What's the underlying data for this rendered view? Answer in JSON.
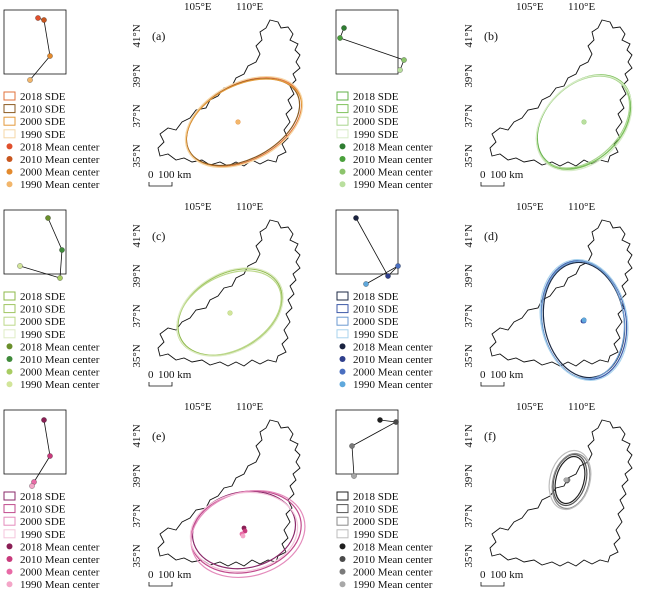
{
  "panels": [
    {
      "label": "(a)",
      "lon_ticks": [
        "105°E",
        "110°E"
      ],
      "lat_ticks": [
        "41°N",
        "39°N",
        "37°N",
        "35°N"
      ],
      "scale_label": "100 km",
      "scale_zero": "0",
      "legend": [
        {
          "text": "2018 SDE",
          "kind": "sde",
          "color": "#e2703a"
        },
        {
          "text": "2010 SDE",
          "kind": "sde",
          "color": "#8a5a20"
        },
        {
          "text": "2000 SDE",
          "kind": "sde",
          "color": "#e39a3b"
        },
        {
          "text": "1990 SDE",
          "kind": "sde",
          "color": "#f6d7a7"
        },
        {
          "text": "2018 Mean center",
          "kind": "center",
          "color": "#e0502d"
        },
        {
          "text": "2010 Mean center",
          "kind": "center",
          "color": "#c8561e"
        },
        {
          "text": "2000 Mean center",
          "kind": "center",
          "color": "#e38a2e"
        },
        {
          "text": "1990 Mean center",
          "kind": "center",
          "color": "#f2b66b"
        }
      ]
    },
    {
      "label": "(b)",
      "lon_ticks": [
        "105°E",
        "110°E"
      ],
      "lat_ticks": [
        "41°N",
        "39°N",
        "37°N",
        "35°N"
      ],
      "scale_label": "100 km",
      "scale_zero": "0",
      "legend": [
        {
          "text": "2018 SDE",
          "kind": "sde",
          "color": "#62b04a"
        },
        {
          "text": "2010 SDE",
          "kind": "sde",
          "color": "#7fc25c"
        },
        {
          "text": "2000 SDE",
          "kind": "sde",
          "color": "#a9d68e"
        },
        {
          "text": "1990 SDE",
          "kind": "sde",
          "color": "#d8ecc9"
        },
        {
          "text": "2018 Mean center",
          "kind": "center",
          "color": "#2f7d32"
        },
        {
          "text": "2010 Mean center",
          "kind": "center",
          "color": "#4aa03c"
        },
        {
          "text": "2000 Mean center",
          "kind": "center",
          "color": "#8cc46c"
        },
        {
          "text": "1990 Mean center",
          "kind": "center",
          "color": "#b9df9e"
        }
      ]
    },
    {
      "label": "(c)",
      "lon_ticks": [
        "105°E",
        "110°E"
      ],
      "lat_ticks": [
        "41°N",
        "39°N",
        "37°N",
        "35°N"
      ],
      "scale_label": "100 km",
      "scale_zero": "0",
      "legend": [
        {
          "text": "2018 SDE",
          "kind": "sde",
          "color": "#8db84a"
        },
        {
          "text": "2010 SDE",
          "kind": "sde",
          "color": "#9fc560"
        },
        {
          "text": "2000 SDE",
          "kind": "sde",
          "color": "#bcd88a"
        },
        {
          "text": "1990 SDE",
          "kind": "sde",
          "color": "#dfecc6"
        },
        {
          "text": "2018 Mean center",
          "kind": "center",
          "color": "#6a8f2c"
        },
        {
          "text": "2010 Mean center",
          "kind": "center",
          "color": "#3f8a3a"
        },
        {
          "text": "2000 Mean center",
          "kind": "center",
          "color": "#a8cc62"
        },
        {
          "text": "1990 Mean center",
          "kind": "center",
          "color": "#d2e59a"
        }
      ]
    },
    {
      "label": "(d)",
      "lon_ticks": [
        "105°E",
        "110°E"
      ],
      "lat_ticks": [
        "41°N",
        "39°N",
        "37°N",
        "35°N"
      ],
      "scale_label": "100 km",
      "scale_zero": "0",
      "legend": [
        {
          "text": "2018 SDE",
          "kind": "sde",
          "color": "#1c2a44"
        },
        {
          "text": "2010 SDE",
          "kind": "sde",
          "color": "#3d5aa8"
        },
        {
          "text": "2000 SDE",
          "kind": "sde",
          "color": "#6b9ad0"
        },
        {
          "text": "1990 SDE",
          "kind": "sde",
          "color": "#a9d3ee"
        },
        {
          "text": "2018 Mean center",
          "kind": "center",
          "color": "#1a2340"
        },
        {
          "text": "2010 Mean center",
          "kind": "center",
          "color": "#2f3f8c"
        },
        {
          "text": "2000 Mean center",
          "kind": "center",
          "color": "#4a6fc0"
        },
        {
          "text": "1990 Mean center",
          "kind": "center",
          "color": "#5fa8dc"
        }
      ]
    },
    {
      "label": "(e)",
      "lon_ticks": [
        "105°E",
        "110°E"
      ],
      "lat_ticks": [
        "41°N",
        "39°N",
        "37°N",
        "35°N"
      ],
      "scale_label": "100 km",
      "scale_zero": "0",
      "legend": [
        {
          "text": "2018  SDE",
          "kind": "sde",
          "color": "#8a2a6a"
        },
        {
          "text": "2010  SDE",
          "kind": "sde",
          "color": "#c04a8c"
        },
        {
          "text": "2000  SDE",
          "kind": "sde",
          "color": "#e48cbc"
        },
        {
          "text": "1990  SDE",
          "kind": "sde",
          "color": "#f4c6dc"
        },
        {
          "text": "2018 Mean center",
          "kind": "center",
          "color": "#8a1f55"
        },
        {
          "text": "2010 Mean center",
          "kind": "center",
          "color": "#c83a7c"
        },
        {
          "text": "2000 Mean center",
          "kind": "center",
          "color": "#e86aa6"
        },
        {
          "text": "1990 Mean center",
          "kind": "center",
          "color": "#f4a6c8"
        }
      ]
    },
    {
      "label": "(f)",
      "lon_ticks": [
        "105°E",
        "110°E"
      ],
      "lat_ticks": [
        "41°N",
        "39°N",
        "37°N",
        "35°N"
      ],
      "scale_label": "100 km",
      "scale_zero": "0",
      "legend": [
        {
          "text": "2018 SDE",
          "kind": "sde",
          "color": "#222222"
        },
        {
          "text": "2010 SDE",
          "kind": "sde",
          "color": "#555555"
        },
        {
          "text": "2000 SDE",
          "kind": "sde",
          "color": "#8a8a8a"
        },
        {
          "text": "1990 SDE",
          "kind": "sde",
          "color": "#bdbdbd"
        },
        {
          "text": "2018 Mean center",
          "kind": "center",
          "color": "#1f1f1f"
        },
        {
          "text": "2010 Mean center",
          "kind": "center",
          "color": "#4a4a4a"
        },
        {
          "text": "2000 Mean center",
          "kind": "center",
          "color": "#7a7a7a"
        },
        {
          "text": "1990 Mean center",
          "kind": "center",
          "color": "#a8a8a8"
        }
      ]
    }
  ]
}
